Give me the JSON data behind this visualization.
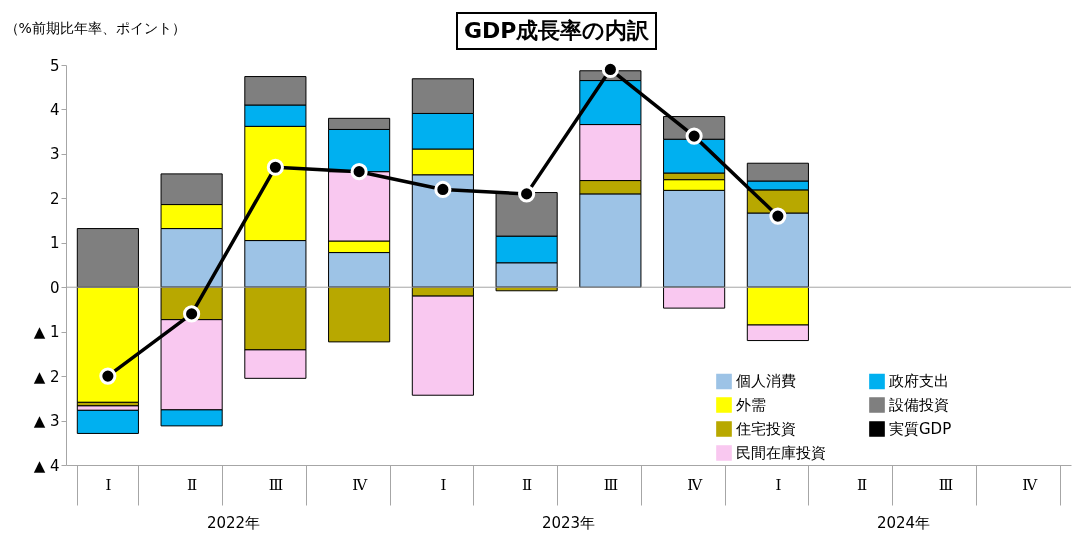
{
  "chart_data": {
    "type": "bar",
    "stacked": true,
    "title": "GDP成長率の内訳",
    "ylabel": "（%前期比年率、ポイント）",
    "categories": [
      "Ⅰ",
      "Ⅱ",
      "Ⅲ",
      "Ⅳ",
      "Ⅰ",
      "Ⅱ",
      "Ⅲ",
      "Ⅳ",
      "Ⅰ",
      "Ⅱ",
      "Ⅲ",
      "Ⅳ"
    ],
    "series": [
      {
        "name": "個人消費",
        "color": "#9dc3e6",
        "values": [
          null,
          1.32,
          1.05,
          0.78,
          2.53,
          0.55,
          2.1,
          2.18,
          1.67,
          null,
          null,
          null
        ]
      },
      {
        "name": "外需",
        "color": "#ffff00",
        "values": [
          -2.59,
          0.54,
          2.57,
          0.26,
          0.58,
          null,
          null,
          0.24,
          -0.85,
          null,
          null,
          null
        ]
      },
      {
        "name": "住宅投資",
        "color": "#b8a800",
        "values": [
          -0.08,
          -0.73,
          -1.41,
          -1.23,
          -0.2,
          -0.08,
          0.3,
          0.15,
          0.52,
          null,
          null,
          null
        ]
      },
      {
        "name": "民間在庫投資",
        "color": "#f9c8f0",
        "values": [
          -0.1,
          -2.03,
          -0.64,
          1.56,
          -2.23,
          null,
          1.26,
          -0.47,
          -0.35,
          null,
          null,
          null
        ]
      },
      {
        "name": "政府支出",
        "color": "#00b0f0",
        "values": [
          -0.52,
          -0.36,
          0.48,
          0.95,
          0.8,
          0.6,
          0.99,
          0.76,
          0.2,
          null,
          null,
          null
        ]
      },
      {
        "name": "設備投資",
        "color": "#7f7f7f",
        "values": [
          1.32,
          0.69,
          0.64,
          0.25,
          0.78,
          0.98,
          0.22,
          0.51,
          0.4,
          null,
          null,
          null
        ]
      },
      {
        "name": "実質GDP",
        "type": "line",
        "color": "#000000",
        "marker": "circle",
        "values": [
          -2.0,
          -0.6,
          2.7,
          2.6,
          2.2,
          2.1,
          4.9,
          3.4,
          1.6,
          null,
          null,
          null
        ]
      }
    ],
    "ylim": [
      -4,
      5
    ],
    "yticks": [
      {
        "value": -4,
        "label": "▲ 4"
      },
      {
        "value": -3,
        "label": "▲ 3"
      },
      {
        "value": -2,
        "label": "▲ 2"
      },
      {
        "value": -1,
        "label": "▲ 1"
      },
      0,
      1,
      2,
      3,
      4,
      5
    ],
    "ref_lines": [
      {
        "axis": "y",
        "value": 0,
        "color": "#a6a6a6"
      }
    ],
    "legend": "bottom right",
    "annotations": [
      "2022年",
      "2023年",
      "2024年"
    ]
  }
}
